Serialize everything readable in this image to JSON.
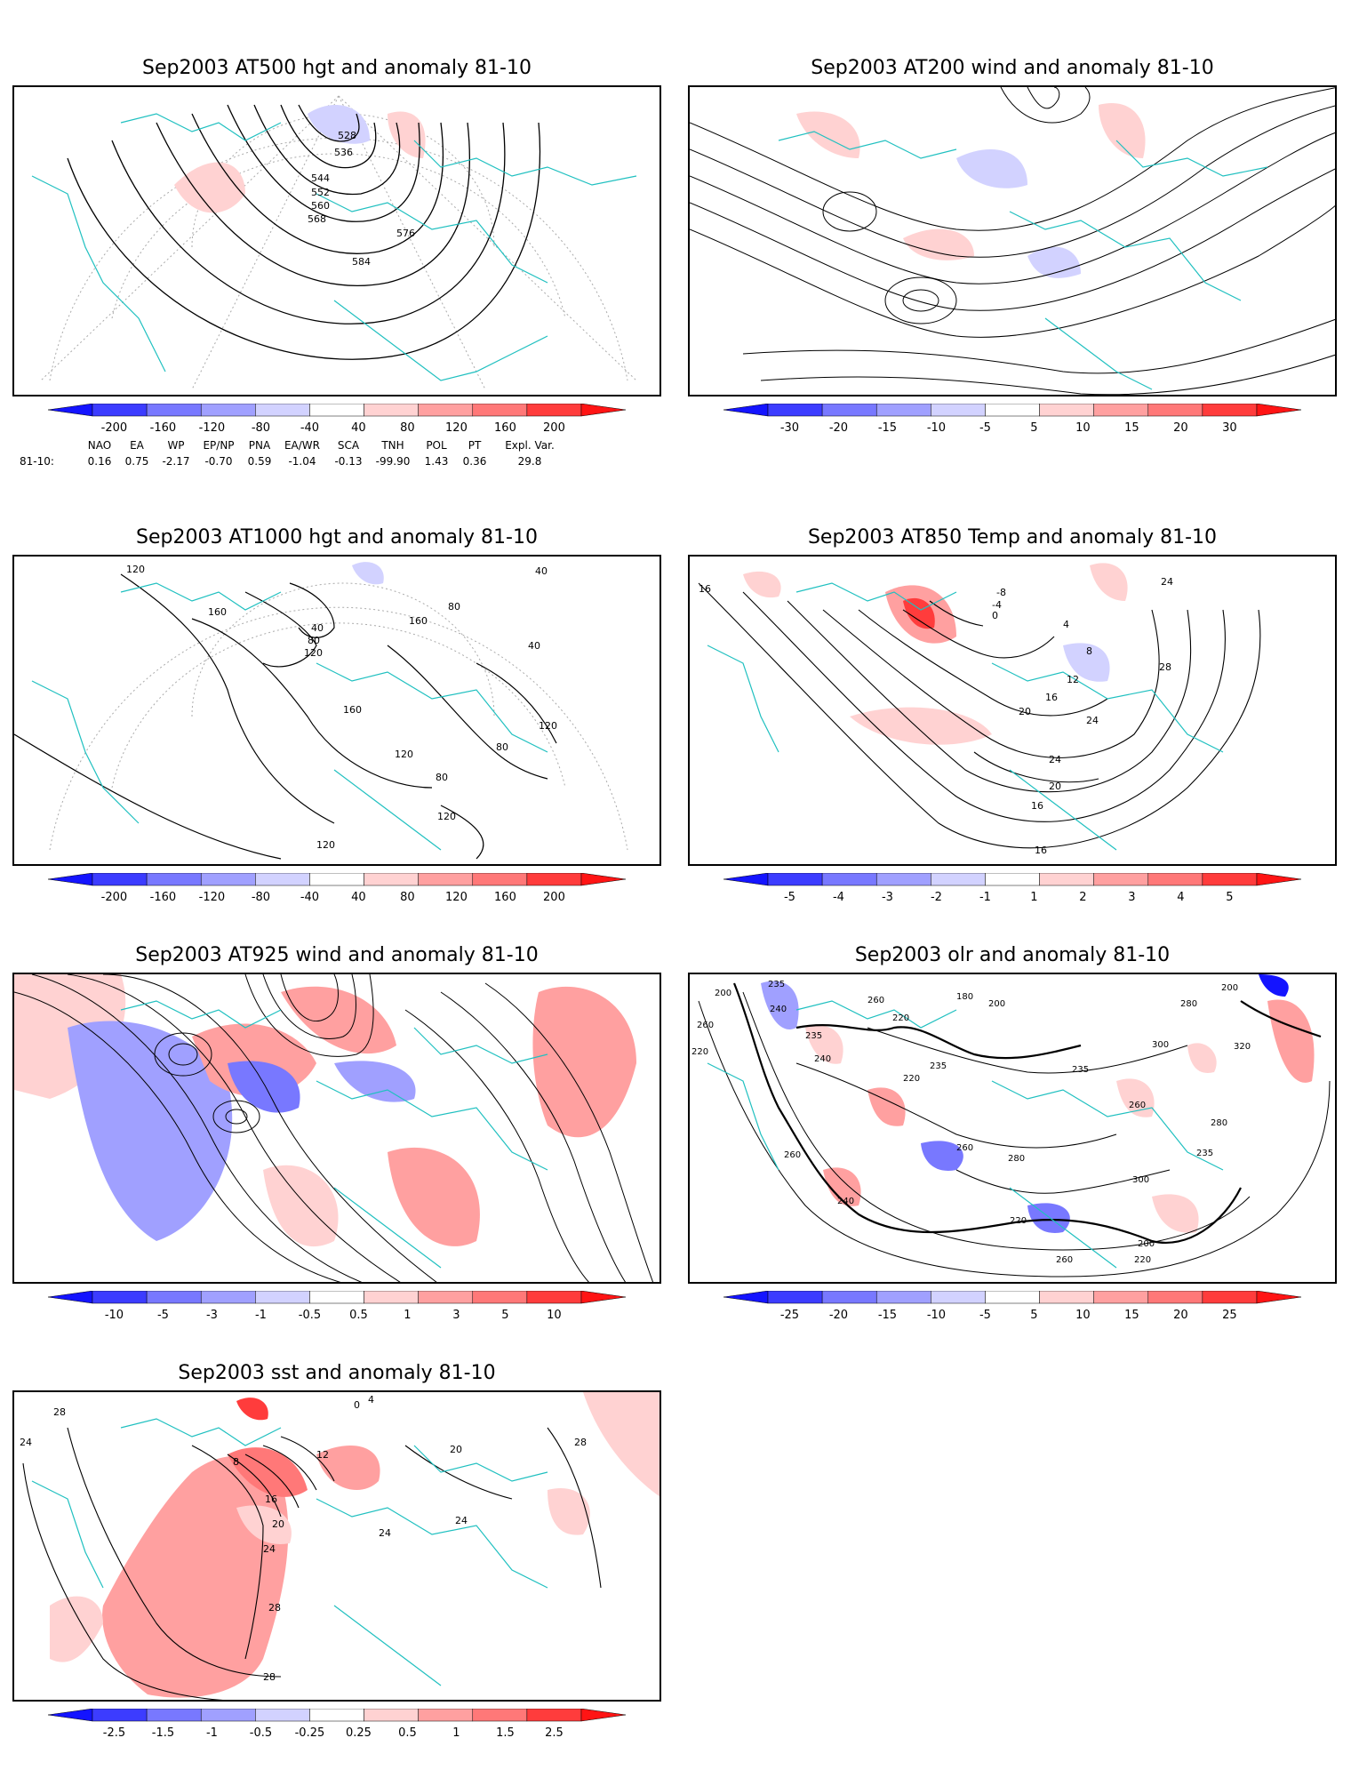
{
  "panels": [
    {
      "id": "p500",
      "title": "Sep2003 AT500 hgt and anomaly 81-10",
      "contour_labels": [
        "528",
        "536",
        "544",
        "552",
        "560",
        "568",
        "576",
        "584"
      ],
      "colorbar": {
        "labels": [
          "-200",
          "-160",
          "-120",
          "-80",
          "-40",
          "40",
          "80",
          "120",
          "160",
          "200"
        ]
      }
    },
    {
      "id": "p200",
      "title": "Sep2003 AT200 wind and anomaly 81-10",
      "contour_labels": [],
      "colorbar": {
        "labels": [
          "-30",
          "-20",
          "-15",
          "-10",
          "-5",
          "5",
          "10",
          "15",
          "20",
          "30"
        ]
      }
    },
    {
      "id": "p1000",
      "title": "Sep2003 AT1000 hgt and anomaly 81-10",
      "contour_labels": [
        "120",
        "160",
        "40",
        "80",
        "120",
        "160",
        "80",
        "40",
        "40",
        "160",
        "120",
        "80",
        "80",
        "120",
        "120",
        "120"
      ],
      "colorbar": {
        "labels": [
          "-200",
          "-160",
          "-120",
          "-80",
          "-40",
          "40",
          "80",
          "120",
          "160",
          "200"
        ]
      }
    },
    {
      "id": "p850",
      "title": "Sep2003 AT850 Temp and anomaly 81-10",
      "contour_labels": [
        "16",
        "-8",
        "-4",
        "0",
        "4",
        "8",
        "12",
        "16",
        "20",
        "24",
        "28",
        "24",
        "20",
        "16",
        "24",
        "16"
      ],
      "colorbar": {
        "labels": [
          "-5",
          "-4",
          "-3",
          "-2",
          "-1",
          "1",
          "2",
          "3",
          "4",
          "5"
        ]
      }
    },
    {
      "id": "p925",
      "title": "Sep2003 AT925 wind and anomaly 81-10",
      "contour_labels": [],
      "colorbar": {
        "labels": [
          "-10",
          "-5",
          "-3",
          "-1",
          "-0.5",
          "0.5",
          "1",
          "3",
          "5",
          "10"
        ]
      }
    },
    {
      "id": "polr",
      "title": "Sep2003 olr and anomaly 81-10",
      "contour_labels": [
        "200",
        "235",
        "240",
        "260",
        "220",
        "235",
        "180",
        "200",
        "220",
        "235",
        "260",
        "280",
        "200",
        "220",
        "235",
        "240",
        "260",
        "300",
        "320",
        "280",
        "260",
        "220",
        "240",
        "260",
        "280",
        "300",
        "235",
        "200",
        "220",
        "260"
      ],
      "colorbar": {
        "labels": [
          "-25",
          "-20",
          "-15",
          "-10",
          "-5",
          "5",
          "10",
          "15",
          "20",
          "25"
        ]
      }
    },
    {
      "id": "psst",
      "title": "Sep2003 sst and anomaly 81-10",
      "contour_labels": [
        "28",
        "24",
        "0",
        "4",
        "8",
        "12",
        "16",
        "20",
        "24",
        "28",
        "28",
        "28",
        "20",
        "24",
        "24"
      ],
      "colorbar": {
        "labels": [
          "-2.5",
          "-1.5",
          "-1",
          "-0.5",
          "-0.25",
          "0.25",
          "0.5",
          "1",
          "1.5",
          "2.5"
        ]
      }
    }
  ],
  "colorbar_colors": [
    "#1414ff",
    "#3c3cff",
    "#7878ff",
    "#a0a0ff",
    "#d2d2ff",
    "#ffffff",
    "#ffd2d2",
    "#ffa0a0",
    "#ff7878",
    "#ff3c3c",
    "#ff1414"
  ],
  "indices": {
    "headers": [
      "NAO",
      "EA",
      "WP",
      "EP/NP",
      "PNA",
      "EA/WR",
      "SCA",
      "TNH",
      "POL",
      "PT",
      "Expl. Var."
    ],
    "row_label": "81-10:",
    "values": [
      "0.16",
      "0.75",
      "-2.17",
      "-0.70",
      "0.59",
      "-1.04",
      "-0.13",
      "-99.90",
      "1.43",
      "0.36",
      "29.8"
    ]
  }
}
